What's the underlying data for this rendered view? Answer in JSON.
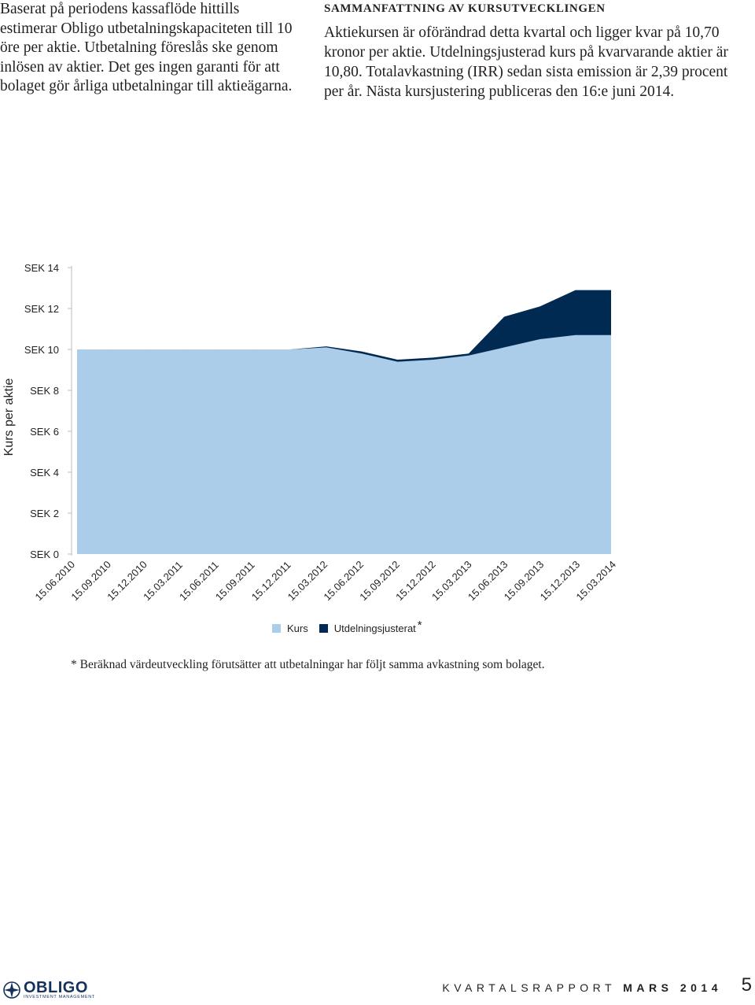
{
  "left_column": {
    "text": "Baserat på periodens kassaflöde hittills estimerar Obligo utbetalningskapaciteten till 10 öre per aktie. Utbetalning föreslås ske genom inlösen av aktier. Det ges ingen garanti för att bolaget gör årliga utbetalningar till aktieägarna."
  },
  "summary": {
    "heading": "SAMMANFATTNING AV KURSUTVECKLINGEN",
    "body": "Aktiekursen är oförändrad detta kvartal och ligger kvar på 10,70 kronor per aktie. Utdelningsjusterad kurs på kvarvarande aktier är 10,80. Totalavkastning (IRR) sedan sista emission är 2,39 procent per år. Nästa kursjustering publiceras den 16:e juni 2014."
  },
  "chart_data": {
    "type": "area",
    "ylabel": "Kurs per aktie",
    "ylim": [
      0,
      14
    ],
    "y_ticks": [
      0,
      2,
      4,
      6,
      8,
      10,
      12,
      14
    ],
    "y_tick_labels": [
      "SEK 0",
      "SEK 2",
      "SEK 4",
      "SEK 6",
      "SEK 8",
      "SEK 10",
      "SEK 12",
      "SEK 14"
    ],
    "categories": [
      "15.06.2010",
      "15.09.2010",
      "15.12.2010",
      "15.03.2011",
      "15.06.2011",
      "15.09.2011",
      "15.12.2011",
      "15.03.2012",
      "15.06.2012",
      "15.09.2012",
      "15.12.2012",
      "15.03.2013",
      "15.06.2013",
      "15.09.2013",
      "15.12.2013",
      "15.03.2014"
    ],
    "series": [
      {
        "name": "Kurs",
        "color": "#abcdea",
        "values": [
          10.0,
          10.0,
          10.0,
          10.0,
          10.0,
          10.0,
          10.0,
          10.1,
          9.8,
          9.4,
          9.5,
          9.7,
          10.1,
          10.5,
          10.7,
          10.7
        ]
      },
      {
        "name": "Utdelningsjusterat",
        "color": "#002a52",
        "values": [
          10.0,
          10.0,
          10.0,
          10.0,
          10.0,
          10.0,
          10.0,
          10.15,
          9.9,
          9.5,
          9.6,
          9.8,
          11.6,
          12.1,
          12.9,
          12.9
        ]
      }
    ],
    "legend": [
      {
        "label": "Kurs",
        "mark": ""
      },
      {
        "label": "Utdelningsjusterat",
        "mark": "*"
      }
    ],
    "legend_position": "bottom",
    "grid": false
  },
  "footnote": "*  Beräknad värdeutveckling förutsätter att utbetalningar har följt samma avkastning som bolaget.",
  "footer": {
    "logo_main": "OBLIGO",
    "logo_sub": "INVESTMENT MANAGEMENT",
    "report_light": "KVARTALSRAPPORT",
    "report_bold": "MARS 2014",
    "page_number": "5"
  }
}
